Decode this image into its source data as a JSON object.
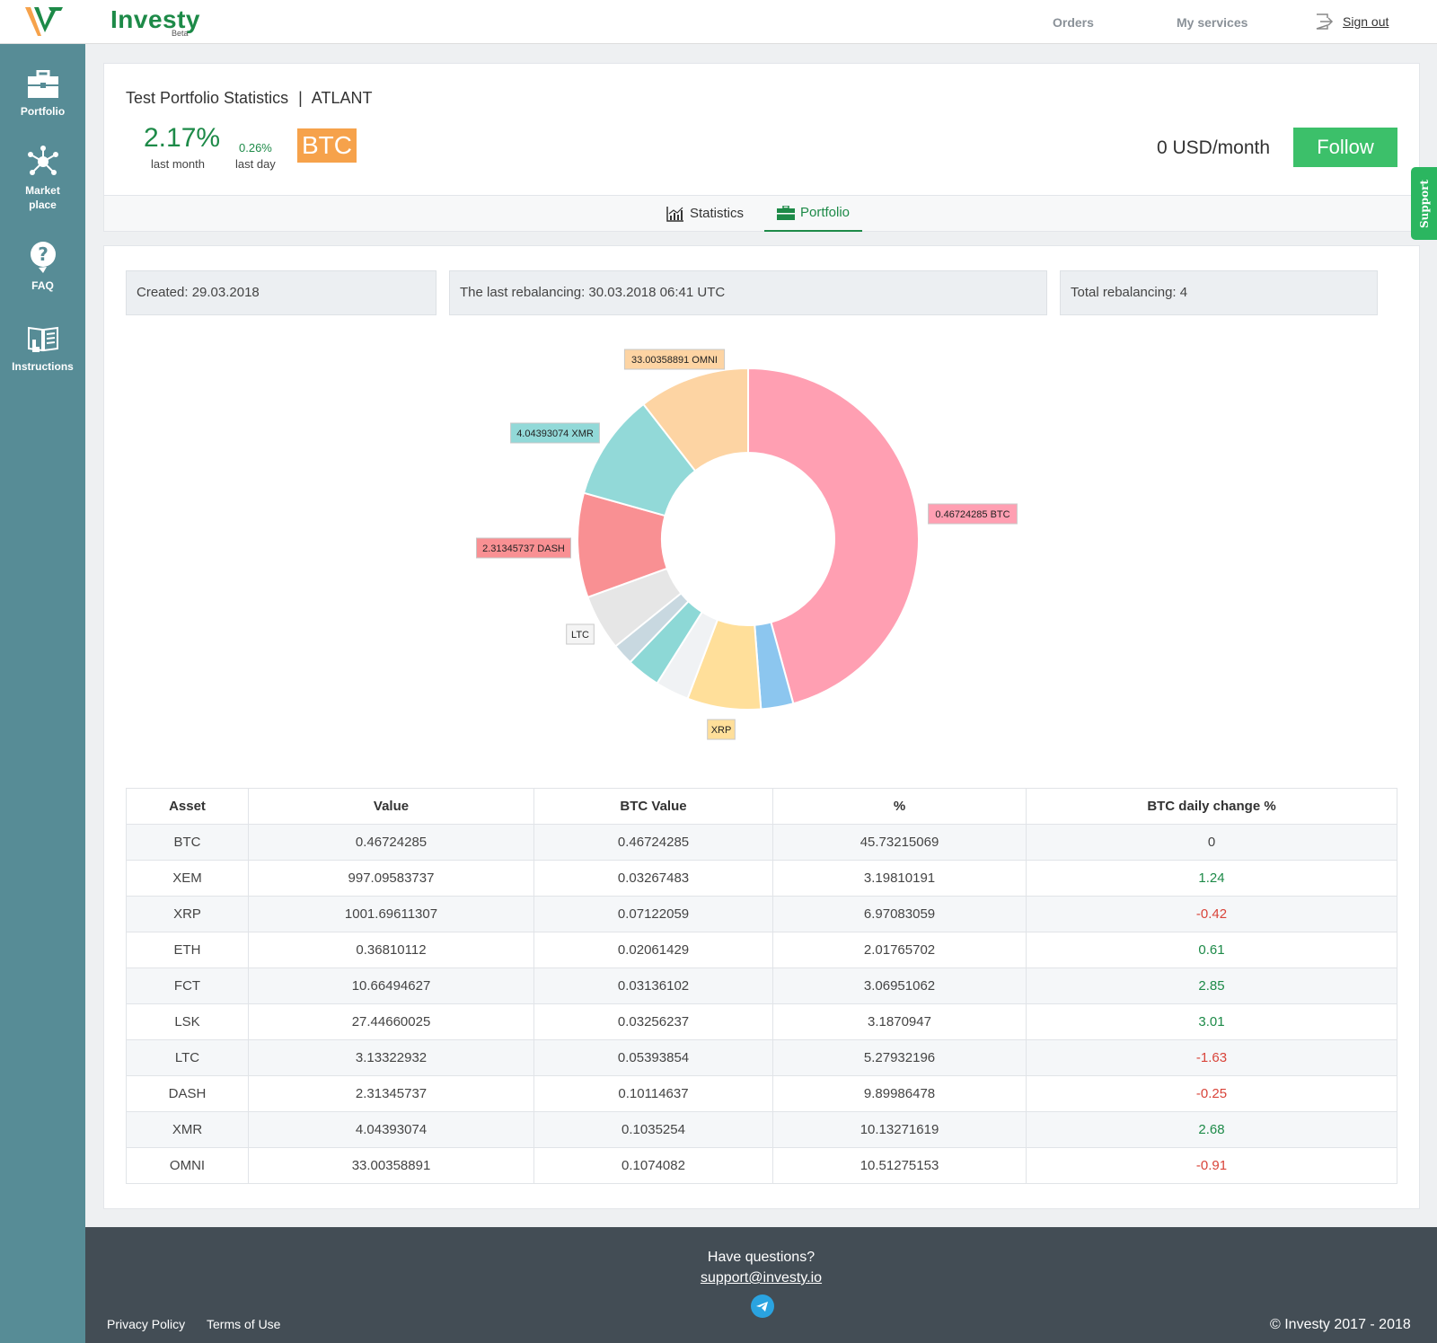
{
  "brand": {
    "name": "Investy",
    "badge": "Beta"
  },
  "nav": {
    "top": [
      {
        "label": "Orders"
      },
      {
        "label": "My services"
      }
    ],
    "sign_out": "Sign out"
  },
  "sidebar": {
    "items": [
      {
        "label": "Portfolio",
        "icon": "briefcase-icon"
      },
      {
        "label": "Market",
        "label2": "place",
        "icon": "network-icon"
      },
      {
        "label": "FAQ",
        "icon": "question-icon"
      },
      {
        "label": "Instructions",
        "icon": "book-icon"
      }
    ]
  },
  "header": {
    "title": "Test Portfolio Statistics",
    "separator": "|",
    "ticker": "ATLANT",
    "perf_month": "2.17%",
    "perf_month_label": "last month",
    "perf_day": "0.26%",
    "perf_day_label": "last day",
    "base_currency": "BTC",
    "price": "0 USD/month",
    "follow_label": "Follow"
  },
  "tabs": [
    {
      "label": "Statistics",
      "icon": "chart-icon",
      "active": false
    },
    {
      "label": "Portfolio",
      "icon": "briefcase-icon",
      "active": true
    }
  ],
  "info": {
    "created": "Created: 29.03.2018",
    "last_rebalancing": "The last rebalancing: 30.03.2018 06:41 UTC",
    "total_rebalancing": "Total rebalancing: 4"
  },
  "chart_data": {
    "type": "pie",
    "donut": true,
    "slices": [
      {
        "name": "BTC",
        "value": 45.73215069,
        "color": "#ff9fb2",
        "label": "0.46724285 BTC"
      },
      {
        "name": "FCT",
        "value": 3.06951062,
        "color": "#8cc6ef",
        "label": ""
      },
      {
        "name": "XRP",
        "value": 6.97083059,
        "color": "#ffdf9a",
        "label": "XRP"
      },
      {
        "name": "LSK",
        "value": 3.1870947,
        "color": "#f0f2f4",
        "label": ""
      },
      {
        "name": "XEM",
        "value": 3.19810191,
        "color": "#8dd8d6",
        "label": ""
      },
      {
        "name": "ETH",
        "value": 2.01765702,
        "color": "#c8d8e0",
        "label": ""
      },
      {
        "name": "LTC",
        "value": 5.27932196,
        "color": "#e6e6e6",
        "label": "LTC"
      },
      {
        "name": "DASH",
        "value": 9.89986478,
        "color": "#f99093",
        "label": "2.31345737 DASH"
      },
      {
        "name": "XMR",
        "value": 10.13271619,
        "color": "#92d9d8",
        "label": "4.04393074 XMR"
      },
      {
        "name": "OMNI",
        "value": 10.51275153,
        "color": "#fdd4a3",
        "label": "33.00358891 OMNI"
      }
    ]
  },
  "table": {
    "headers": [
      "Asset",
      "Value",
      "BTC Value",
      "%",
      "BTC daily change %"
    ],
    "rows": [
      {
        "asset": "BTC",
        "value": "0.46724285",
        "btc_value": "0.46724285",
        "pct": "45.73215069",
        "change": "0",
        "trend": "none"
      },
      {
        "asset": "XEM",
        "value": "997.09583737",
        "btc_value": "0.03267483",
        "pct": "3.19810191",
        "change": "1.24",
        "trend": "pos"
      },
      {
        "asset": "XRP",
        "value": "1001.69611307",
        "btc_value": "0.07122059",
        "pct": "6.97083059",
        "change": "-0.42",
        "trend": "neg"
      },
      {
        "asset": "ETH",
        "value": "0.36810112",
        "btc_value": "0.02061429",
        "pct": "2.01765702",
        "change": "0.61",
        "trend": "pos"
      },
      {
        "asset": "FCT",
        "value": "10.66494627",
        "btc_value": "0.03136102",
        "pct": "3.06951062",
        "change": "2.85",
        "trend": "pos"
      },
      {
        "asset": "LSK",
        "value": "27.44660025",
        "btc_value": "0.03256237",
        "pct": "3.1870947",
        "change": "3.01",
        "trend": "pos"
      },
      {
        "asset": "LTC",
        "value": "3.13322932",
        "btc_value": "0.05393854",
        "pct": "5.27932196",
        "change": "-1.63",
        "trend": "neg"
      },
      {
        "asset": "DASH",
        "value": "2.31345737",
        "btc_value": "0.10114637",
        "pct": "9.89986478",
        "change": "-0.25",
        "trend": "neg"
      },
      {
        "asset": "XMR",
        "value": "4.04393074",
        "btc_value": "0.1035254",
        "pct": "10.13271619",
        "change": "2.68",
        "trend": "pos"
      },
      {
        "asset": "OMNI",
        "value": "33.00358891",
        "btc_value": "0.1074082",
        "pct": "10.51275153",
        "change": "-0.91",
        "trend": "neg"
      }
    ]
  },
  "support_tab": "Support",
  "footer": {
    "question": "Have questions?",
    "email": "support@investy.io",
    "links": [
      "Privacy Policy",
      "Terms of Use"
    ],
    "copyright": "© Investy 2017 - 2018"
  },
  "colors": {
    "accent": "#1d8a48",
    "sidebar": "#578c96",
    "follow": "#3cc06a",
    "badge": "#f6a24b",
    "footer": "#434d55"
  }
}
